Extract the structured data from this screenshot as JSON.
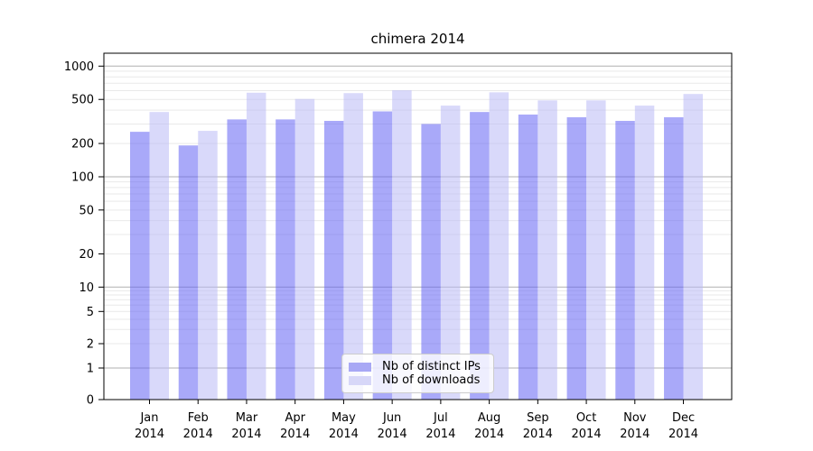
{
  "chart_data": {
    "type": "bar",
    "title": "chimera 2014",
    "categories": [
      "Jan 2014",
      "Feb 2014",
      "Mar 2014",
      "Apr 2014",
      "May 2014",
      "Jun 2014",
      "Jul 2014",
      "Aug 2014",
      "Sep 2014",
      "Oct 2014",
      "Nov 2014",
      "Dec 2014"
    ],
    "series": [
      {
        "name": "Nb of distinct IPs",
        "color": "#a8a8f5",
        "fill": "rgba(99,99,244,0.55)",
        "values": [
          255,
          192,
          330,
          330,
          320,
          390,
          300,
          385,
          365,
          345,
          320,
          345
        ]
      },
      {
        "name": "Nb of downloads",
        "color": "#d7d7f8",
        "fill": "rgba(186,186,246,0.55)",
        "values": [
          385,
          260,
          575,
          505,
          570,
          605,
          440,
          580,
          490,
          490,
          440,
          560
        ]
      }
    ],
    "yscale": "symlog",
    "yticks": [
      0,
      1,
      2,
      5,
      10,
      20,
      50,
      100,
      200,
      500,
      1000
    ],
    "ylim": [
      0,
      1300
    ],
    "grid": true,
    "legend_position": "lower center",
    "colors": {
      "major_gridline": "#b0b0b0",
      "minor_gridline": "#e9e9e9",
      "axis": "#000000"
    }
  }
}
